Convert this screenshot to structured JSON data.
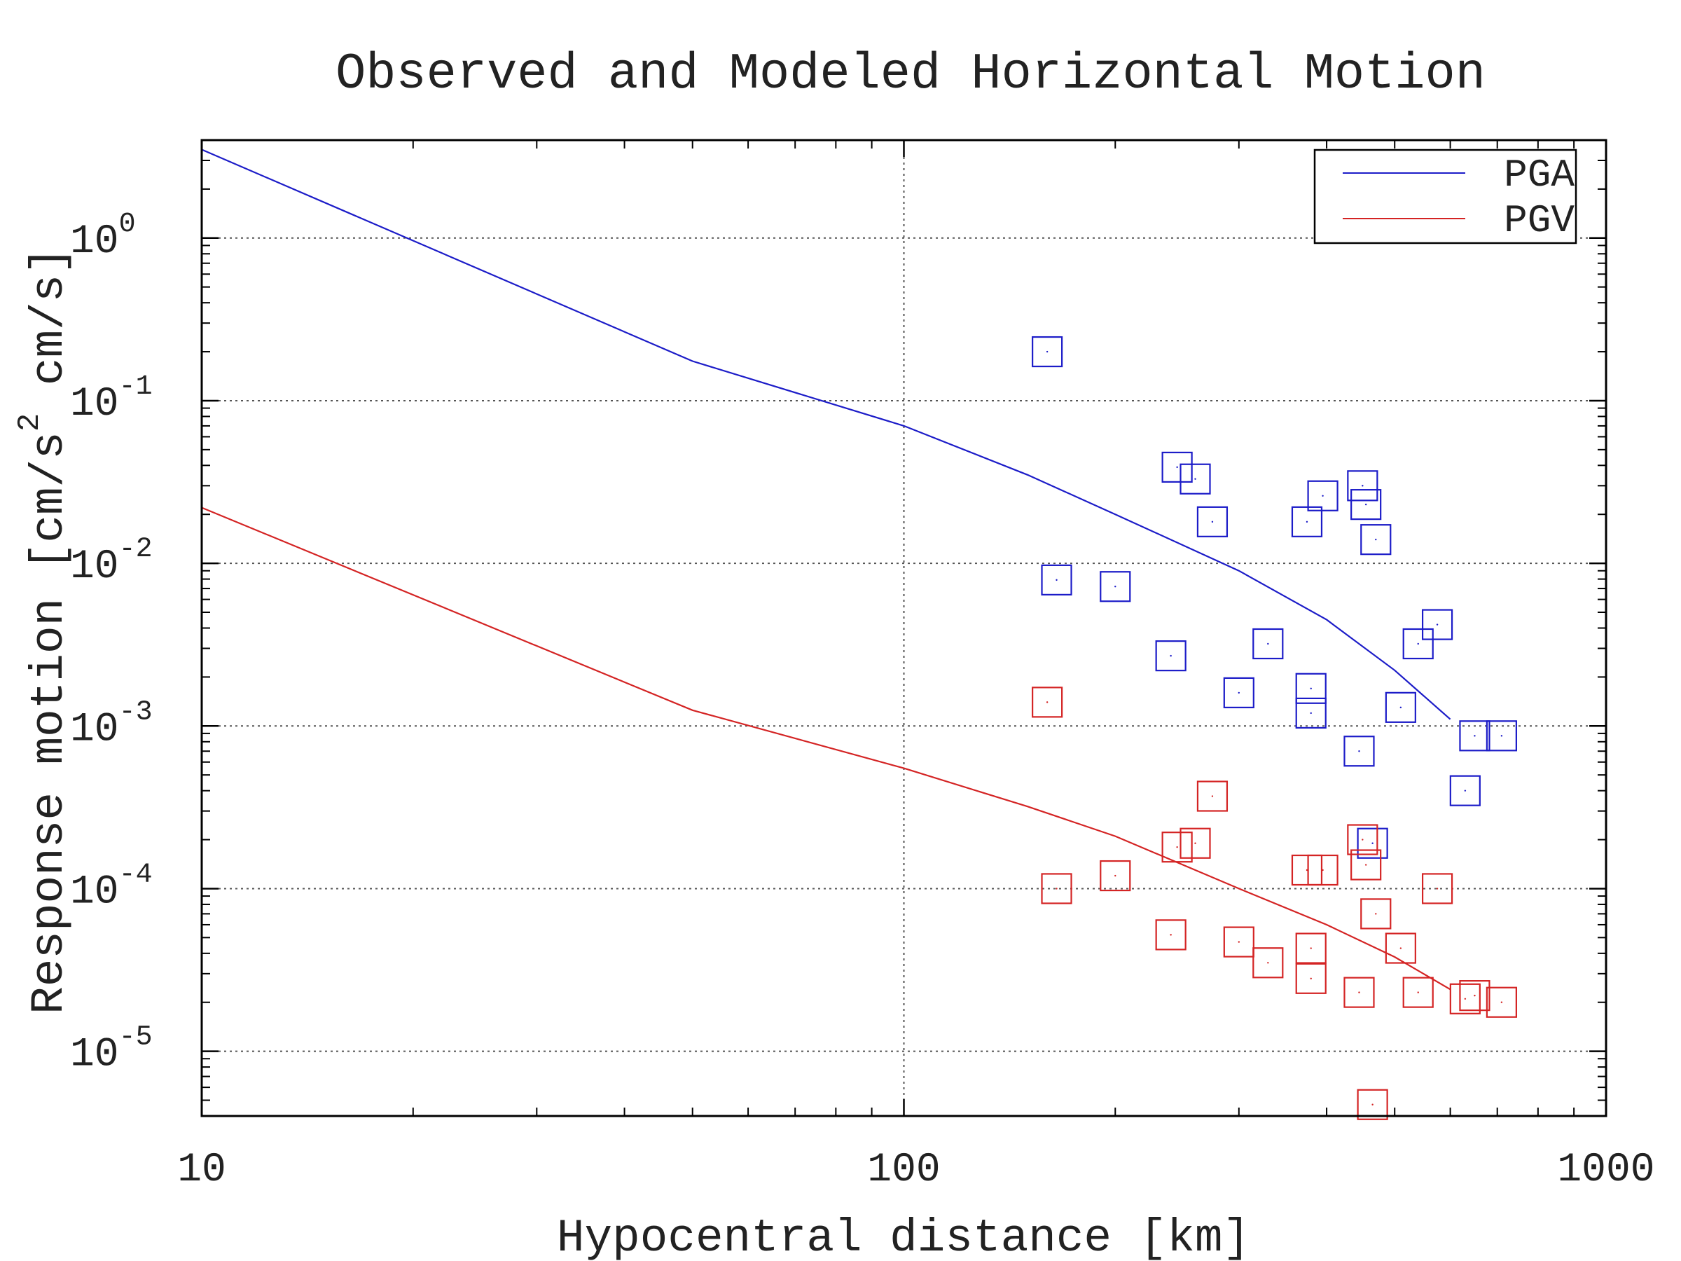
{
  "chart_data": {
    "type": "scatter",
    "title": "Observed and Modeled Horizontal Motion",
    "xlabel": "Hypocentral distance [km]",
    "ylabel_parts": {
      "before": "Response motion  [cm/s",
      "sup": "2",
      "after": "  cm/s]"
    },
    "x_scale": "log",
    "y_scale": "log",
    "xlim": [
      10,
      1000
    ],
    "ylim": [
      4e-06,
      4
    ],
    "x_ticks": [
      {
        "value": 10,
        "label": "10"
      },
      {
        "value": 100,
        "label": "100"
      },
      {
        "value": 1000,
        "label": "1000"
      }
    ],
    "y_ticks": [
      {
        "value": 1,
        "base": "10",
        "exp": "0"
      },
      {
        "value": 0.1,
        "base": "10",
        "exp": "-1"
      },
      {
        "value": 0.01,
        "base": "10",
        "exp": "-2"
      },
      {
        "value": 0.001,
        "base": "10",
        "exp": "-3"
      },
      {
        "value": 0.0001,
        "base": "10",
        "exp": "-4"
      },
      {
        "value": 1e-05,
        "base": "10",
        "exp": "-5"
      }
    ],
    "grid": true,
    "legend_position": "top-right",
    "colors": {
      "pga": "#1c1cc8",
      "pgv": "#d42424",
      "axis": "#000000",
      "grid": "#555555"
    },
    "series": [
      {
        "name": "PGA",
        "key": "pga",
        "model": [
          [
            10,
            3.5
          ],
          [
            50,
            0.175
          ],
          [
            100,
            0.07
          ],
          [
            150,
            0.035
          ],
          [
            200,
            0.02
          ],
          [
            300,
            0.009
          ],
          [
            400,
            0.0045
          ],
          [
            500,
            0.0022
          ],
          [
            600,
            0.0011
          ]
        ],
        "observed": [
          [
            160,
            0.2
          ],
          [
            165,
            0.0079
          ],
          [
            200,
            0.0072
          ],
          [
            240,
            0.0027
          ],
          [
            245,
            0.039
          ],
          [
            260,
            0.033
          ],
          [
            275,
            0.018
          ],
          [
            300,
            0.0016
          ],
          [
            330,
            0.0032
          ],
          [
            375,
            0.018
          ],
          [
            380,
            0.0017
          ],
          [
            380,
            0.0012
          ],
          [
            395,
            0.026
          ],
          [
            445,
            0.0007
          ],
          [
            450,
            0.03
          ],
          [
            455,
            0.023
          ],
          [
            465,
            0.00019
          ],
          [
            470,
            0.014
          ],
          [
            510,
            0.0013
          ],
          [
            540,
            0.0032
          ],
          [
            575,
            0.0042
          ],
          [
            630,
            0.0004
          ],
          [
            650,
            0.00087
          ],
          [
            710,
            0.00087
          ]
        ]
      },
      {
        "name": "PGV",
        "key": "pgv",
        "model": [
          [
            10,
            0.022
          ],
          [
            50,
            0.00125
          ],
          [
            100,
            0.00055
          ],
          [
            150,
            0.00032
          ],
          [
            200,
            0.00021
          ],
          [
            300,
            0.0001
          ],
          [
            400,
            6e-05
          ],
          [
            500,
            3.8e-05
          ],
          [
            600,
            2.4e-05
          ]
        ],
        "observed": [
          [
            160,
            0.0014
          ],
          [
            165,
            0.0001
          ],
          [
            200,
            0.00012
          ],
          [
            240,
            5.2e-05
          ],
          [
            245,
            0.00018
          ],
          [
            260,
            0.00019
          ],
          [
            275,
            0.00037
          ],
          [
            300,
            4.7e-05
          ],
          [
            330,
            3.5e-05
          ],
          [
            375,
            0.00013
          ],
          [
            380,
            4.3e-05
          ],
          [
            380,
            2.8e-05
          ],
          [
            395,
            0.00013
          ],
          [
            445,
            2.3e-05
          ],
          [
            450,
            0.0002
          ],
          [
            455,
            0.00014
          ],
          [
            465,
            4.7e-06
          ],
          [
            470,
            7e-05
          ],
          [
            510,
            4.3e-05
          ],
          [
            540,
            2.3e-05
          ],
          [
            575,
            0.0001
          ],
          [
            630,
            2.1e-05
          ],
          [
            650,
            2.2e-05
          ],
          [
            710,
            2e-05
          ]
        ]
      }
    ]
  }
}
